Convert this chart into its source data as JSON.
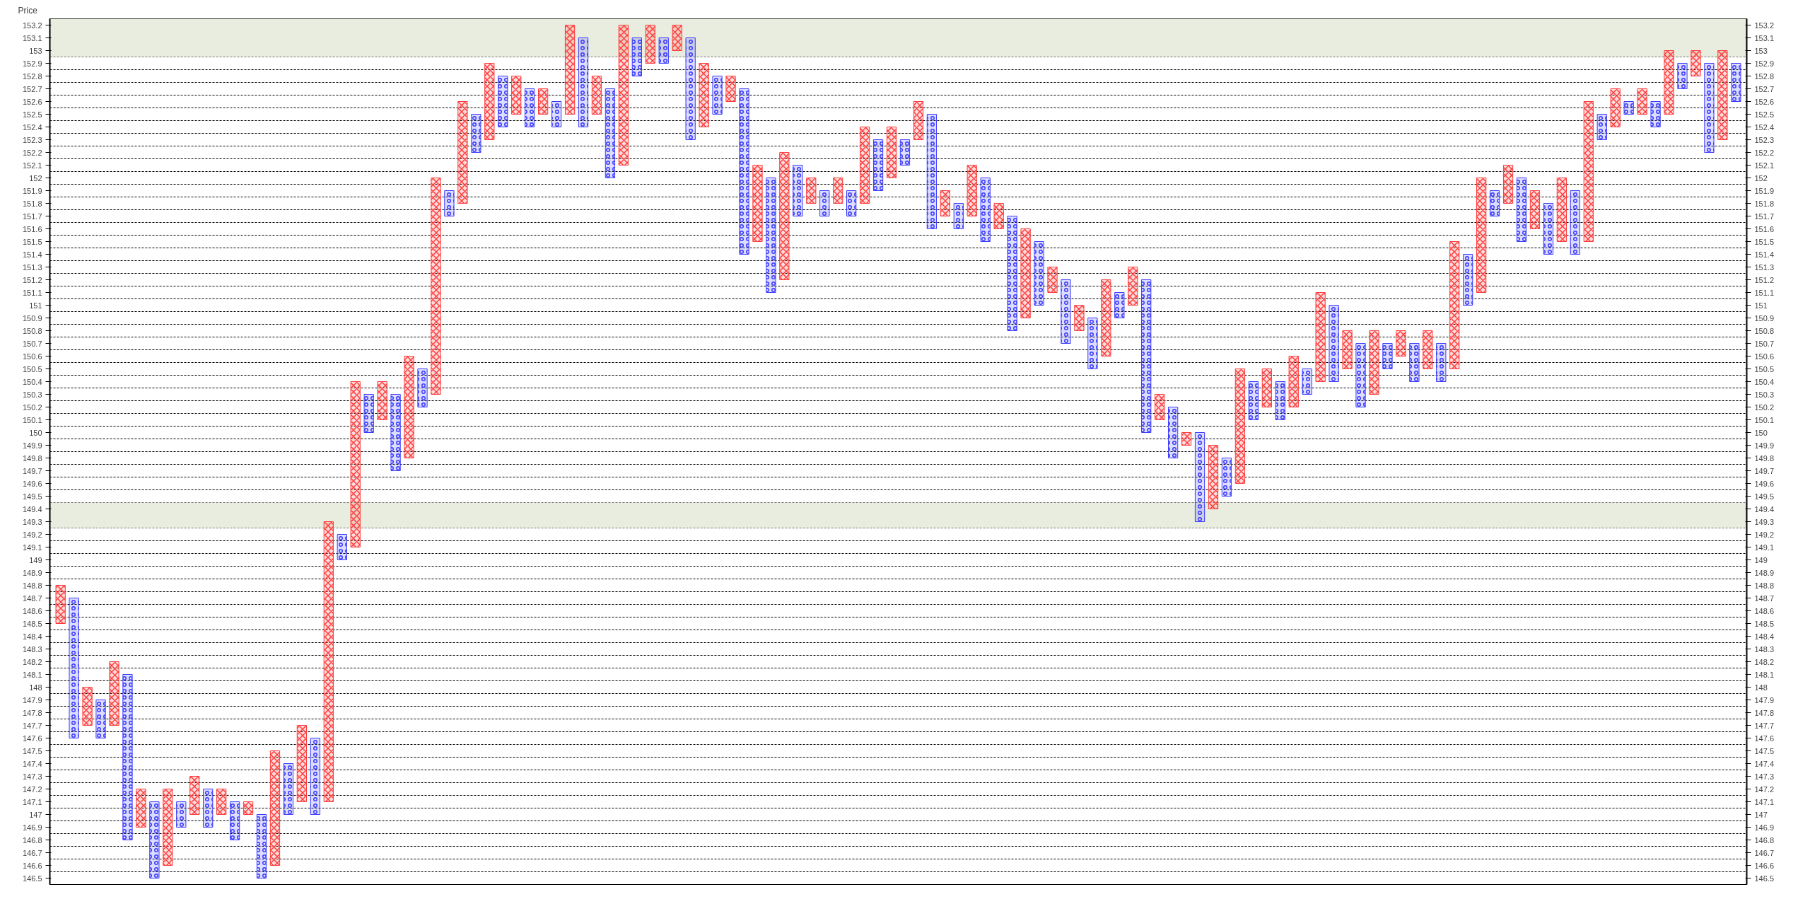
{
  "chart_data": {
    "type": "bar",
    "ylabel": "Price",
    "categories": [
      null,
      null,
      null,
      null,
      null,
      null,
      null,
      null,
      null,
      null,
      null,
      null,
      null,
      null,
      null,
      null,
      null,
      null,
      null,
      null,
      null,
      null,
      null,
      null,
      null,
      null,
      null,
      null,
      null,
      null,
      null,
      null,
      null,
      null,
      null,
      null,
      null,
      null,
      null,
      null,
      null,
      null,
      null,
      null,
      null,
      null,
      null,
      null,
      null,
      null,
      null,
      null,
      null,
      null,
      null,
      null,
      null,
      null,
      null,
      null,
      null,
      null,
      null,
      null,
      null,
      null,
      null,
      null,
      null,
      null,
      null,
      null,
      null,
      null,
      null,
      null,
      null,
      null,
      null,
      null,
      null,
      null,
      null,
      null,
      null,
      null,
      null,
      null,
      null,
      null,
      null,
      null,
      null,
      null,
      null,
      null,
      null,
      null,
      null,
      null,
      null,
      null,
      null,
      null,
      null,
      null,
      null,
      null,
      null,
      null,
      null,
      null,
      null,
      null,
      null,
      null,
      null,
      null,
      null,
      null,
      null,
      null,
      null,
      null,
      null,
      null
    ],
    "series": [
      {
        "color": "#ff3b3b",
        "marker": "cross",
        "base": [
          148.5,
          null,
          147.7,
          null,
          147.7,
          null,
          146.9,
          null,
          146.6,
          null,
          147.0,
          null,
          147.0,
          null,
          147.0,
          null,
          146.6,
          null,
          147.1,
          null,
          147.1,
          null,
          149.1,
          null,
          150.1,
          null,
          149.8,
          null,
          150.3,
          null,
          151.8,
          null,
          152.3,
          null,
          152.5,
          null,
          152.5,
          null,
          152.5,
          null,
          152.5,
          null,
          152.1,
          null,
          152.9,
          null,
          153.0,
          null,
          152.4,
          null,
          152.6,
          null,
          151.5,
          null,
          151.2,
          null,
          151.8,
          null,
          151.8,
          null,
          151.8,
          null,
          152.0,
          null,
          152.3,
          null,
          151.7,
          null,
          151.7,
          null,
          151.6,
          null,
          150.9,
          null,
          151.1,
          null,
          150.8,
          null,
          150.6,
          null,
          151.0,
          null,
          150.1,
          null,
          149.9,
          null,
          149.4,
          null,
          149.6,
          null,
          150.2,
          null,
          150.2,
          null,
          150.4,
          null,
          150.5,
          null,
          150.3,
          null,
          150.6,
          null,
          150.5,
          null,
          150.5,
          null,
          151.1,
          null,
          151.8,
          null,
          151.6,
          null,
          151.5,
          null,
          151.5,
          null,
          152.4,
          null,
          152.5,
          null,
          152.5,
          null,
          152.8,
          null,
          152.3,
          null
        ],
        "values": [
          0.3,
          null,
          0.3,
          null,
          0.5,
          null,
          0.3,
          null,
          0.6,
          null,
          0.3,
          null,
          0.2,
          null,
          0.1,
          null,
          0.9,
          null,
          0.6,
          null,
          2.2,
          null,
          1.3,
          null,
          0.3,
          null,
          0.8,
          null,
          1.7,
          null,
          0.8,
          null,
          0.6,
          null,
          0.3,
          null,
          0.2,
          null,
          0.7,
          null,
          0.3,
          null,
          1.1,
          null,
          0.3,
          null,
          0.2,
          null,
          0.5,
          null,
          0.2,
          null,
          0.6,
          null,
          1.0,
          null,
          0.2,
          null,
          0.2,
          null,
          0.6,
          null,
          0.4,
          null,
          0.3,
          null,
          0.2,
          null,
          0.4,
          null,
          0.2,
          null,
          0.7,
          null,
          0.2,
          null,
          0.2,
          null,
          0.6,
          null,
          0.3,
          null,
          0.2,
          null,
          0.1,
          null,
          0.5,
          null,
          0.9,
          null,
          0.3,
          null,
          0.4,
          null,
          0.7,
          null,
          0.3,
          null,
          0.5,
          null,
          0.2,
          null,
          0.3,
          null,
          1.0,
          null,
          0.9,
          null,
          0.3,
          null,
          0.3,
          null,
          0.5,
          null,
          1.1,
          null,
          0.3,
          null,
          0.2,
          null,
          0.5,
          null,
          0.2,
          null,
          0.7,
          null
        ]
      },
      {
        "color": "#3b3bff",
        "marker": "circle",
        "base": [
          null,
          147.6,
          null,
          147.6,
          null,
          146.8,
          null,
          146.5,
          null,
          146.9,
          null,
          146.9,
          null,
          146.8,
          null,
          146.5,
          null,
          147.0,
          null,
          147.0,
          null,
          149.0,
          null,
          150.0,
          null,
          149.7,
          null,
          150.2,
          null,
          151.7,
          null,
          152.2,
          null,
          152.4,
          null,
          152.4,
          null,
          152.4,
          null,
          152.4,
          null,
          152.0,
          null,
          152.8,
          null,
          152.9,
          null,
          152.3,
          null,
          152.5,
          null,
          151.4,
          null,
          151.1,
          null,
          151.7,
          null,
          151.7,
          null,
          151.7,
          null,
          151.9,
          null,
          152.1,
          null,
          151.6,
          null,
          151.6,
          null,
          151.5,
          null,
          150.8,
          null,
          151.0,
          null,
          150.7,
          null,
          150.5,
          null,
          150.9,
          null,
          150.0,
          null,
          149.8,
          null,
          149.3,
          null,
          149.5,
          null,
          150.1,
          null,
          150.1,
          null,
          150.3,
          null,
          150.4,
          null,
          150.2,
          null,
          150.5,
          null,
          150.4,
          null,
          150.4,
          null,
          151.0,
          null,
          151.7,
          null,
          151.5,
          null,
          151.4,
          null,
          151.4,
          null,
          152.3,
          null,
          152.5,
          null,
          152.4,
          null,
          152.7,
          null,
          152.2,
          null,
          152.6
        ],
        "values": [
          null,
          1.1,
          null,
          0.3,
          null,
          1.3,
          null,
          0.6,
          null,
          0.2,
          null,
          0.3,
          null,
          0.3,
          null,
          0.5,
          null,
          0.4,
          null,
          0.6,
          null,
          0.2,
          null,
          0.3,
          null,
          0.6,
          null,
          0.3,
          null,
          0.2,
          null,
          0.3,
          null,
          0.4,
          null,
          0.3,
          null,
          0.2,
          null,
          0.7,
          null,
          0.7,
          null,
          0.3,
          null,
          0.2,
          null,
          0.8,
          null,
          0.3,
          null,
          1.3,
          null,
          0.9,
          null,
          0.4,
          null,
          0.2,
          null,
          0.2,
          null,
          0.4,
          null,
          0.2,
          null,
          0.9,
          null,
          0.2,
          null,
          0.5,
          null,
          0.9,
          null,
          0.5,
          null,
          0.5,
          null,
          0.4,
          null,
          0.2,
          null,
          1.2,
          null,
          0.4,
          null,
          0.7,
          null,
          0.3,
          null,
          0.3,
          null,
          0.3,
          null,
          0.2,
          null,
          0.6,
          null,
          0.5,
          null,
          0.2,
          null,
          0.3,
          null,
          0.3,
          null,
          0.4,
          null,
          0.2,
          null,
          0.5,
          null,
          0.4,
          null,
          0.5,
          null,
          0.2,
          null,
          0.1,
          null,
          0.2,
          null,
          0.2,
          null,
          0.7,
          null,
          0.3
        ]
      }
    ],
    "ylim": [
      146.45,
      153.25
    ],
    "yticks": [
      146.5,
      146.6,
      146.7,
      146.8,
      146.9,
      147,
      147.1,
      147.2,
      147.3,
      147.4,
      147.5,
      147.6,
      147.7,
      147.8,
      147.9,
      148,
      148.1,
      148.2,
      148.3,
      148.4,
      148.5,
      148.6,
      148.7,
      148.8,
      148.9,
      149,
      149.1,
      149.2,
      149.3,
      149.4,
      149.5,
      149.6,
      149.7,
      149.8,
      149.9,
      150,
      150.1,
      150.2,
      150.3,
      150.4,
      150.5,
      150.6,
      150.7,
      150.8,
      150.9,
      151,
      151.1,
      151.2,
      151.3,
      151.4,
      151.5,
      151.6,
      151.7,
      151.8,
      151.9,
      152,
      152.1,
      152.2,
      152.3,
      152.4,
      152.5,
      152.6,
      152.7,
      152.8,
      152.9,
      153,
      153.1,
      153.2
    ],
    "y2lim": [
      146.45,
      153.25
    ],
    "y2ticks": [
      146.5,
      146.6,
      146.7,
      146.8,
      146.9,
      147,
      147.1,
      147.2,
      147.3,
      147.4,
      147.5,
      147.6,
      147.7,
      147.8,
      147.9,
      148,
      148.1,
      148.2,
      148.3,
      148.4,
      148.5,
      148.6,
      148.7,
      148.8,
      148.9,
      149,
      149.1,
      149.2,
      149.3,
      149.4,
      149.5,
      149.6,
      149.7,
      149.8,
      149.9,
      150,
      150.1,
      150.2,
      150.3,
      150.4,
      150.5,
      150.6,
      150.7,
      150.8,
      150.9,
      151,
      151.1,
      151.2,
      151.3,
      151.4,
      151.5,
      151.6,
      151.7,
      151.8,
      151.9,
      152,
      152.1,
      152.2,
      152.3,
      152.4,
      152.5,
      152.6,
      152.7,
      152.8,
      152.9,
      153,
      153.1,
      153.2
    ],
    "bands": [
      {
        "axis": "y",
        "from": 152.95,
        "to": 153.25,
        "color": "#e9eddf"
      },
      {
        "axis": "y",
        "from": 149.25,
        "to": 149.45,
        "color": "#e9eddf"
      }
    ],
    "grid": "y",
    "tick_labels": "y"
  }
}
